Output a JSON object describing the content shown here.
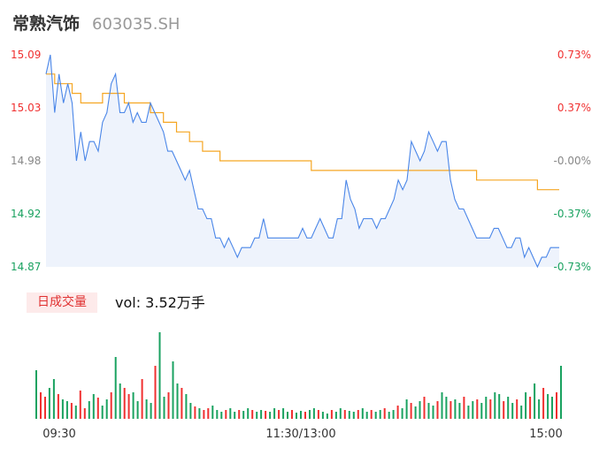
{
  "header": {
    "name": "常熟汽饰",
    "code": "603035.SH"
  },
  "volume_panel": {
    "badge": "日成交量",
    "vol_label": "vol: 3.52万手"
  },
  "colors": {
    "up": "#f03030",
    "down": "#1aa260",
    "flat": "#888888",
    "price_line": "#4a86e8",
    "avg_line": "#f5a623",
    "volume_up": "#f03030",
    "volume_down": "#1aa260"
  },
  "chart_data": [
    {
      "type": "line",
      "title": "",
      "xlabel": "",
      "ylabel": "",
      "ylim": [
        14.87,
        15.09
      ],
      "y_ticks": [
        {
          "price": "15.09",
          "pct": "0.73%",
          "state": "up"
        },
        {
          "price": "15.03",
          "pct": "0.37%",
          "state": "up"
        },
        {
          "price": "14.98",
          "pct": "-0.00%",
          "state": "flat"
        },
        {
          "price": "14.92",
          "pct": "-0.37%",
          "state": "down"
        },
        {
          "price": "14.87",
          "pct": "-0.73%",
          "state": "down"
        }
      ],
      "x_ticks": [
        "09:30",
        "11:30/13:00",
        "15:00"
      ],
      "series": [
        {
          "values": [
            15.07,
            15.09,
            15.03,
            15.07,
            15.04,
            15.06,
            15.04,
            14.98,
            15.01,
            14.98,
            15.0,
            15.0,
            14.99,
            15.02,
            15.03,
            15.06,
            15.07,
            15.03,
            15.03,
            15.04,
            15.02,
            15.03,
            15.02,
            15.02,
            15.04,
            15.03,
            15.02,
            15.01,
            14.99,
            14.99,
            14.98,
            14.97,
            14.96,
            14.97,
            14.95,
            14.93,
            14.93,
            14.92,
            14.92,
            14.9,
            14.9,
            14.89,
            14.9,
            14.89,
            14.88,
            14.89,
            14.89,
            14.89,
            14.9,
            14.9,
            14.92,
            14.9,
            14.9,
            14.9,
            14.9,
            14.9,
            14.9,
            14.9,
            14.9,
            14.91,
            14.9,
            14.9,
            14.91,
            14.92,
            14.91,
            14.9,
            14.9,
            14.92,
            14.92,
            14.96,
            14.94,
            14.93,
            14.91,
            14.92,
            14.92,
            14.92,
            14.91,
            14.92,
            14.92,
            14.93,
            14.94,
            14.96,
            14.95,
            14.96,
            15.0,
            14.99,
            14.98,
            14.99,
            15.01,
            15.0,
            14.99,
            15.0,
            15.0,
            14.96,
            14.94,
            14.93,
            14.93,
            14.92,
            14.91,
            14.9,
            14.9,
            14.9,
            14.9,
            14.91,
            14.91,
            14.9,
            14.89,
            14.89,
            14.9,
            14.9,
            14.88,
            14.89,
            14.88,
            14.87,
            14.88,
            14.88,
            14.89,
            14.89,
            14.89
          ],
          "name": ""
        },
        {
          "values": [
            15.07,
            15.07,
            15.06,
            15.06,
            15.06,
            15.06,
            15.05,
            15.05,
            15.04,
            15.04,
            15.04,
            15.04,
            15.04,
            15.05,
            15.05,
            15.05,
            15.05,
            15.05,
            15.04,
            15.04,
            15.04,
            15.04,
            15.04,
            15.04,
            15.03,
            15.03,
            15.03,
            15.02,
            15.02,
            15.02,
            15.01,
            15.01,
            15.01,
            15.0,
            15.0,
            15.0,
            14.99,
            14.99,
            14.99,
            14.99,
            14.98,
            14.98,
            14.98,
            14.98,
            14.98,
            14.98,
            14.98,
            14.98,
            14.98,
            14.98,
            14.98,
            14.98,
            14.98,
            14.98,
            14.98,
            14.98,
            14.98,
            14.98,
            14.98,
            14.98,
            14.98,
            14.97,
            14.97,
            14.97,
            14.97,
            14.97,
            14.97,
            14.97,
            14.97,
            14.97,
            14.97,
            14.97,
            14.97,
            14.97,
            14.97,
            14.97,
            14.97,
            14.97,
            14.97,
            14.97,
            14.97,
            14.97,
            14.97,
            14.97,
            14.97,
            14.97,
            14.97,
            14.97,
            14.97,
            14.97,
            14.97,
            14.97,
            14.97,
            14.97,
            14.97,
            14.97,
            14.97,
            14.97,
            14.97,
            14.96,
            14.96,
            14.96,
            14.96,
            14.96,
            14.96,
            14.96,
            14.96,
            14.96,
            14.96,
            14.96,
            14.96,
            14.96,
            14.96,
            14.95,
            14.95,
            14.95,
            14.95,
            14.95,
            14.95
          ],
          "name": ""
        }
      ]
    },
    {
      "type": "bar",
      "title": "",
      "xlabel": "",
      "ylabel": "",
      "ylim": [
        0,
        100
      ],
      "series": [
        {
          "name": "",
          "values": [
            55,
            30,
            25,
            35,
            45,
            28,
            22,
            20,
            18,
            15,
            32,
            12,
            20,
            28,
            24,
            15,
            22,
            30,
            70,
            40,
            35,
            28,
            30,
            20,
            45,
            22,
            18,
            60,
            98,
            25,
            30,
            65,
            40,
            35,
            28,
            18,
            14,
            12,
            10,
            12,
            15,
            10,
            8,
            10,
            12,
            8,
            10,
            9,
            12,
            10,
            8,
            10,
            9,
            8,
            12,
            10,
            12,
            8,
            10,
            7,
            9,
            8,
            10,
            12,
            10,
            8,
            6,
            10,
            8,
            12,
            10,
            9,
            8,
            10,
            12,
            8,
            10,
            8,
            10,
            12,
            8,
            10,
            15,
            12,
            22,
            18,
            14,
            20,
            25,
            18,
            15,
            20,
            30,
            25,
            20,
            22,
            18,
            25,
            15,
            20,
            22,
            18,
            25,
            22,
            30,
            28,
            20,
            25,
            18,
            22,
            15,
            30,
            25,
            40,
            22,
            35,
            28,
            25,
            30,
            60
          ]
        }
      ],
      "up_down": "duuddudduduudduddudduudduddudduddudduduuddduddudduddudduddudduddudduddudduddudduddudduddudduddudduddudduddudduddudduddudduddu"
    }
  ]
}
